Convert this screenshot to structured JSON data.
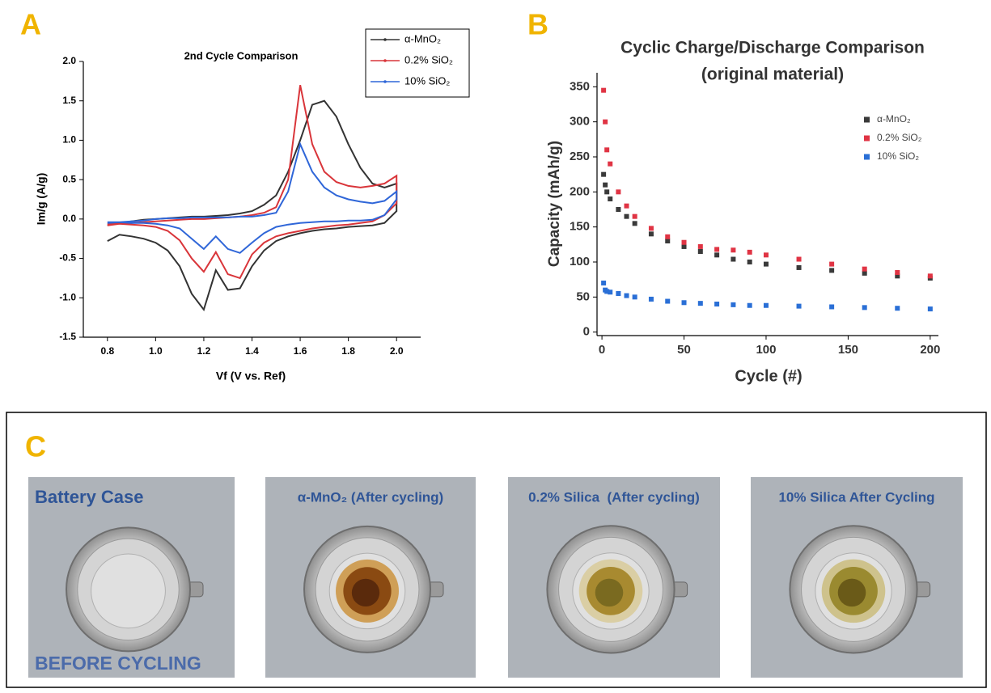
{
  "panels": [
    "A",
    "B",
    "C"
  ],
  "chart_data": [
    {
      "type": "line",
      "title": "2nd Cycle Comparison",
      "x_label": "Vf (V vs. Ref)",
      "y_label": "Im/g (A/g)",
      "x": [
        0.8,
        0.85,
        0.9,
        0.95,
        1.0,
        1.05,
        1.1,
        1.15,
        1.2,
        1.25,
        1.3,
        1.35,
        1.4,
        1.45,
        1.5,
        1.55,
        1.6,
        1.65,
        1.7,
        1.75,
        1.8,
        1.85,
        1.9,
        1.95,
        2.0,
        2.0,
        1.95,
        1.9,
        1.85,
        1.8,
        1.75,
        1.7,
        1.65,
        1.6,
        1.55,
        1.5,
        1.45,
        1.4,
        1.35,
        1.3,
        1.25,
        1.2,
        1.15,
        1.1,
        1.05,
        1.0,
        0.95,
        0.9,
        0.85,
        0.8
      ],
      "series": [
        {
          "name": "α-MnO₂",
          "color": "#333333",
          "values": [
            -0.08,
            -0.05,
            -0.03,
            -0.01,
            0,
            0.01,
            0.02,
            0.03,
            0.03,
            0.04,
            0.05,
            0.07,
            0.1,
            0.18,
            0.3,
            0.6,
            1.0,
            1.45,
            1.5,
            1.3,
            0.95,
            0.65,
            0.45,
            0.4,
            0.45,
            0.1,
            -0.05,
            -0.08,
            -0.09,
            -0.1,
            -0.12,
            -0.13,
            -0.15,
            -0.18,
            -0.22,
            -0.28,
            -0.4,
            -0.6,
            -0.88,
            -0.9,
            -0.65,
            -1.15,
            -0.95,
            -0.6,
            -0.4,
            -0.3,
            -0.25,
            -0.22,
            -0.2,
            -0.28
          ]
        },
        {
          "name": "0.2% SiO₂",
          "color": "#d9353a",
          "values": [
            -0.08,
            -0.06,
            -0.05,
            -0.04,
            -0.03,
            -0.02,
            -0.01,
            0,
            0,
            0.01,
            0.02,
            0.03,
            0.05,
            0.08,
            0.15,
            0.5,
            1.7,
            0.95,
            0.6,
            0.47,
            0.42,
            0.4,
            0.42,
            0.45,
            0.55,
            0.2,
            0.05,
            -0.03,
            -0.05,
            -0.07,
            -0.08,
            -0.1,
            -0.12,
            -0.15,
            -0.18,
            -0.22,
            -0.3,
            -0.45,
            -0.75,
            -0.7,
            -0.42,
            -0.67,
            -0.5,
            -0.27,
            -0.15,
            -0.1,
            -0.08,
            -0.07,
            -0.06,
            -0.06
          ]
        },
        {
          "name": "10% SiO₂",
          "color": "#2f66d8",
          "values": [
            -0.05,
            -0.04,
            -0.03,
            -0.02,
            0,
            0.01,
            0.01,
            0.02,
            0.02,
            0.02,
            0.02,
            0.03,
            0.03,
            0.05,
            0.08,
            0.35,
            0.95,
            0.6,
            0.4,
            0.3,
            0.25,
            0.22,
            0.2,
            0.23,
            0.35,
            0.25,
            0.05,
            -0.01,
            -0.02,
            -0.02,
            -0.03,
            -0.03,
            -0.04,
            -0.05,
            -0.07,
            -0.1,
            -0.18,
            -0.3,
            -0.43,
            -0.38,
            -0.22,
            -0.38,
            -0.25,
            -0.12,
            -0.08,
            -0.06,
            -0.05,
            -0.05,
            -0.04,
            -0.04
          ]
        }
      ],
      "xlim": [
        0.7,
        2.1
      ],
      "xticks": [
        0.8,
        {
          "value": 1,
          "label": "1.0"
        },
        1.2,
        1.4,
        1.6,
        1.8,
        {
          "value": 2,
          "label": "2.0"
        }
      ],
      "ylim": [
        -1.5,
        2
      ],
      "yticks": [
        -1.5,
        {
          "value": -1,
          "label": "-1.0"
        },
        -0.5,
        {
          "value": 0,
          "label": "0.0"
        },
        0.5,
        {
          "value": 1,
          "label": "1.0"
        },
        1.5,
        {
          "value": 2,
          "label": "2.0"
        }
      ],
      "grid": false,
      "legend": "upper right"
    },
    {
      "type": "scatter",
      "title": "Cyclic Charge/Discharge Comparison",
      "subtitle": "(original material)",
      "x_label": "Cycle (#)",
      "y_label": "Capacity (mAh/g)",
      "x": [
        1,
        2,
        3,
        5,
        10,
        15,
        20,
        30,
        40,
        50,
        60,
        70,
        80,
        90,
        100,
        120,
        140,
        160,
        180,
        200
      ],
      "series": [
        {
          "name": "α-MnO₂",
          "color": "#3a3a3a",
          "values": [
            225,
            210,
            200,
            190,
            175,
            165,
            155,
            140,
            130,
            122,
            115,
            110,
            104,
            100,
            97,
            92,
            88,
            84,
            80,
            77
          ]
        },
        {
          "name": "0.2% SiO₂",
          "color": "#e03444",
          "values": [
            345,
            300,
            260,
            240,
            200,
            180,
            165,
            148,
            136,
            128,
            122,
            118,
            117,
            114,
            110,
            104,
            97,
            90,
            85,
            80
          ]
        },
        {
          "name": "10% SiO₂",
          "color": "#2a6fd6",
          "values": [
            70,
            60,
            58,
            57,
            55,
            52,
            50,
            47,
            44,
            42,
            41,
            40,
            39,
            38,
            38,
            37,
            36,
            35,
            34,
            33
          ]
        }
      ],
      "xlim": [
        -3,
        205
      ],
      "xticks": [
        0,
        50,
        100,
        150,
        200
      ],
      "ylim": [
        -5,
        370
      ],
      "yticks": [
        0,
        50,
        100,
        150,
        200,
        250,
        300,
        350
      ],
      "grid": false,
      "legend": "upper right"
    }
  ],
  "photos": [
    {
      "title": "Battery Case",
      "footer": "BEFORE CYCLING"
    },
    {
      "title": "α-MnO₂ (After cycling)"
    },
    {
      "title": "0.2% Silica  (After cycling)"
    },
    {
      "title": "10% Silica After Cycling"
    }
  ]
}
